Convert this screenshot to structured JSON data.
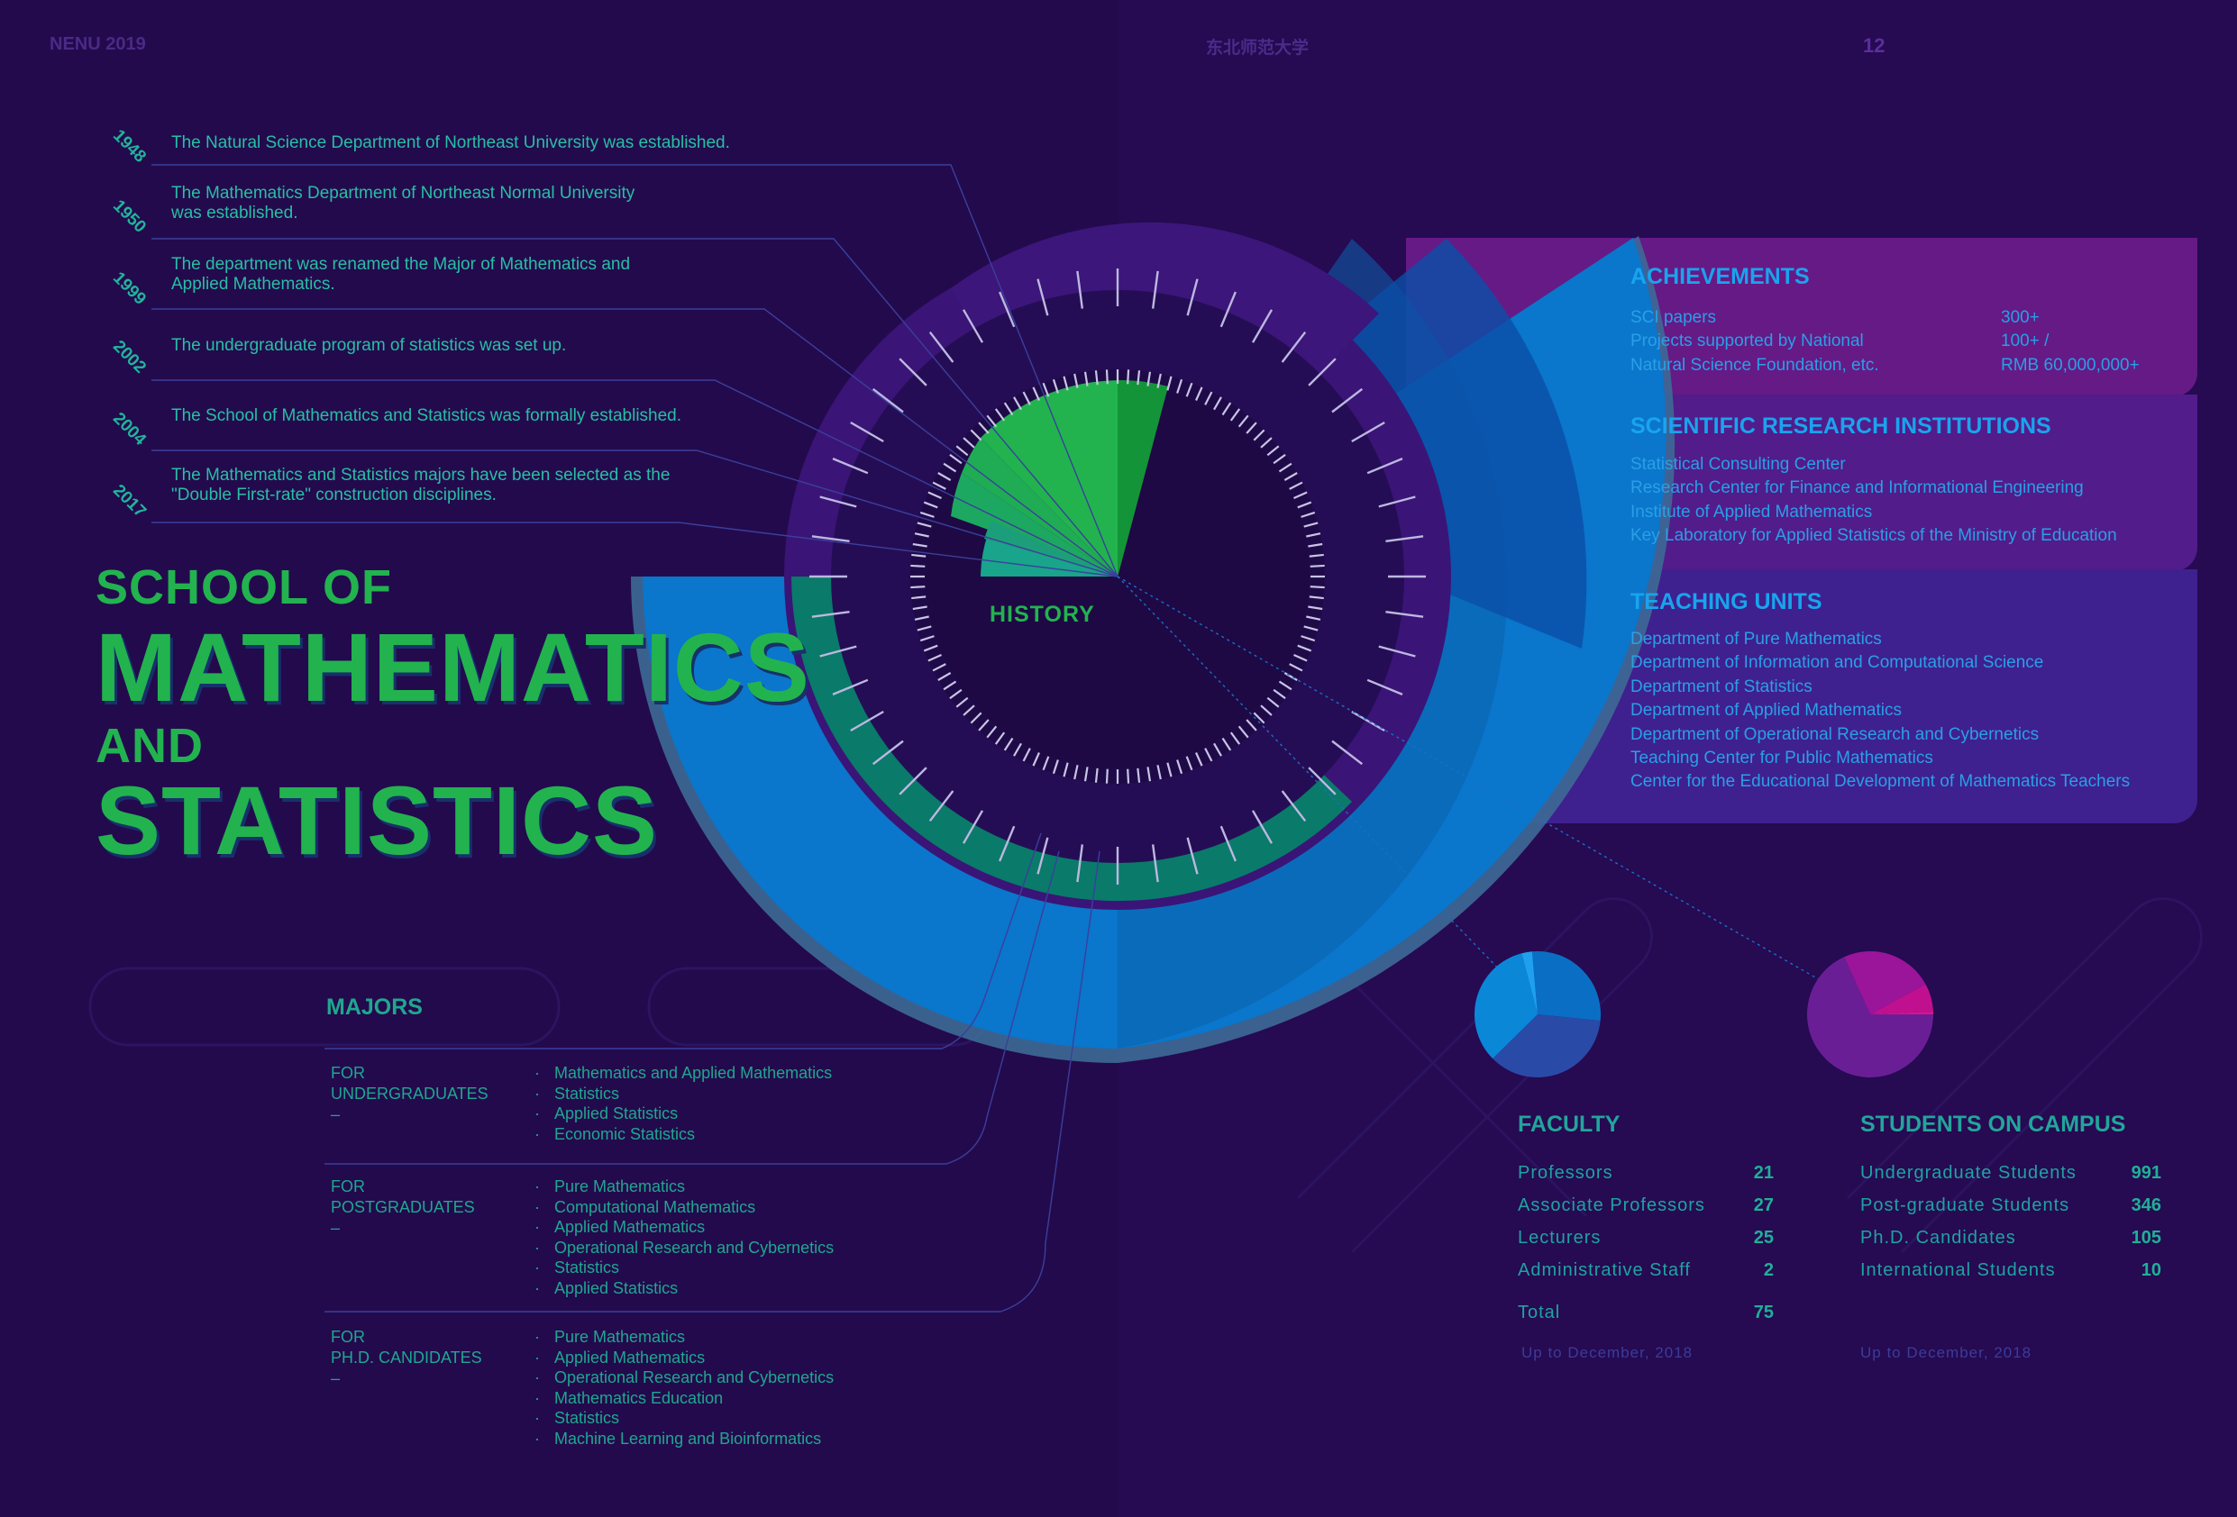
{
  "header": {
    "left": "NENU 2019",
    "center": "东北师范大学",
    "page_number": "12"
  },
  "history": {
    "label": "HISTORY",
    "events": [
      {
        "year": "1948",
        "lines": [
          "The Natural Science Department of Northeast University was established."
        ]
      },
      {
        "year": "1950",
        "lines": [
          "The Mathematics Department of Northeast Normal University",
          "was established."
        ]
      },
      {
        "year": "1999",
        "lines": [
          "The department was renamed the Major of Mathematics and",
          "Applied Mathematics."
        ]
      },
      {
        "year": "2002",
        "lines": [
          "The undergraduate program of statistics was set up."
        ]
      },
      {
        "year": "2004",
        "lines": [
          "The School of Mathematics and Statistics was formally established."
        ]
      },
      {
        "year": "2017",
        "lines": [
          "The Mathematics and Statistics majors have been selected as the",
          "\"Double First-rate\" construction disciplines."
        ]
      }
    ]
  },
  "title": {
    "line1": "SCHOOL OF",
    "line2": "MATHEMATICS",
    "line3": "AND",
    "line4": "STATISTICS"
  },
  "achievements": {
    "title": "ACHIEVEMENTS",
    "rows": [
      {
        "label": "SCI papers",
        "value": "300+"
      },
      {
        "label": "Projects supported by National",
        "value": "100+ /"
      },
      {
        "label": "Natural Science Foundation, etc.",
        "value": "RMB 60,000,000+"
      }
    ]
  },
  "research": {
    "title": "SCIENTIFIC RESEARCH INSTITUTIONS",
    "items": [
      "Statistical Consulting Center",
      "Research Center for Finance and Informational Engineering",
      "Institute of Applied Mathematics",
      "Key Laboratory for Applied Statistics of the Ministry of Education"
    ]
  },
  "teaching": {
    "title": "TEACHING UNITS",
    "items": [
      "Department of Pure Mathematics",
      "Department of Information and Computational Science",
      "Department of Statistics",
      "Department of Applied Mathematics",
      "Department of Operational Research and Cybernetics",
      "Teaching Center for Public Mathematics",
      "Center for the Educational Development of Mathematics Teachers"
    ]
  },
  "majors": {
    "title": "MAJORS",
    "groups": [
      {
        "label": [
          "FOR",
          "UNDERGRADUATES",
          "–"
        ],
        "items": [
          "Mathematics and Applied Mathematics",
          "Statistics",
          "Applied Statistics",
          "Economic Statistics"
        ]
      },
      {
        "label": [
          "FOR",
          "POSTGRADUATES",
          "–"
        ],
        "items": [
          "Pure Mathematics",
          "Computational Mathematics",
          "Applied Mathematics",
          "Operational Research and Cybernetics",
          "Statistics",
          "Applied Statistics"
        ]
      },
      {
        "label": [
          "FOR",
          "PH.D. CANDIDATES",
          "–"
        ],
        "items": [
          "Pure Mathematics",
          "Applied Mathematics",
          "Operational Research and Cybernetics",
          "Mathematics Education",
          "Statistics",
          "Machine Learning and Bioinformatics"
        ]
      }
    ]
  },
  "faculty": {
    "title": "FACULTY",
    "rows": [
      {
        "label": "Professors",
        "value": 21
      },
      {
        "label": "Associate Professors",
        "value": 27
      },
      {
        "label": "Lecturers",
        "value": 25
      },
      {
        "label": "Administrative Staff",
        "value": 2
      }
    ],
    "total_label": "Total",
    "total_value": 75,
    "note": "Up to December, 2018",
    "pie_colors": [
      "#0a6fc4",
      "#2a4aa8",
      "#0b87d8",
      "#1ea0ee"
    ]
  },
  "students": {
    "title": "STUDENTS ON CAMPUS",
    "rows": [
      {
        "label": "Undergraduate Students",
        "value": 991
      },
      {
        "label": "Post-graduate Students",
        "value": 346
      },
      {
        "label": "Ph.D. Candidates",
        "value": 105
      },
      {
        "label": "International Students",
        "value": 10
      }
    ],
    "note": "Up to December, 2018",
    "pie_colors": [
      "#6a1e96",
      "#9a159a",
      "#c0108f",
      "#e0128a"
    ]
  },
  "colors": {
    "background": "#230a4d",
    "green": "#22b34f",
    "blue": "#0a78d0",
    "teal": "#1fa78e",
    "achievements_panel": "#651a86",
    "research_panel": "#521c8a",
    "teaching_panel": "#3f208f"
  }
}
